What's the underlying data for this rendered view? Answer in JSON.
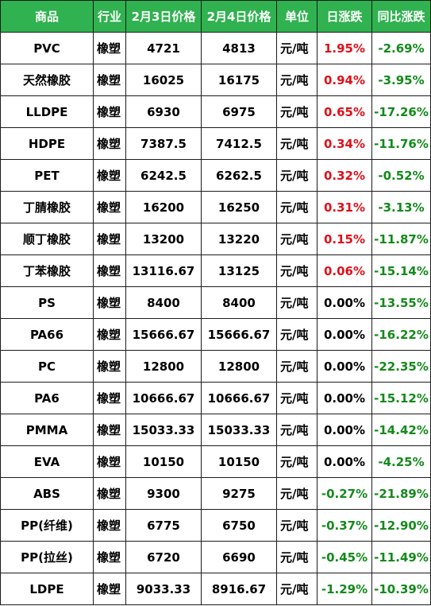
{
  "colors": {
    "header_bg": "#2fb24f",
    "header_text": "#ffffff",
    "rise": "#e0101a",
    "fall": "#138a1b",
    "flat": "#000000"
  },
  "headers": [
    "商品",
    "行业",
    "2月3日价格",
    "2月4日价格",
    "单位",
    "日涨跌",
    "同比涨跌"
  ],
  "rows": [
    {
      "name": "PVC",
      "industry": "橡塑",
      "price_feb3": "4721",
      "price_feb4": "4813",
      "unit": "元/吨",
      "daily_change": "1.95%",
      "daily_trend": "up",
      "yoy_change": "-2.69%"
    },
    {
      "name": "天然橡胶",
      "industry": "橡塑",
      "price_feb3": "16025",
      "price_feb4": "16175",
      "unit": "元/吨",
      "daily_change": "0.94%",
      "daily_trend": "up",
      "yoy_change": "-3.95%"
    },
    {
      "name": "LLDPE",
      "industry": "橡塑",
      "price_feb3": "6930",
      "price_feb4": "6975",
      "unit": "元/吨",
      "daily_change": "0.65%",
      "daily_trend": "up",
      "yoy_change": "-17.26%"
    },
    {
      "name": "HDPE",
      "industry": "橡塑",
      "price_feb3": "7387.5",
      "price_feb4": "7412.5",
      "unit": "元/吨",
      "daily_change": "0.34%",
      "daily_trend": "up",
      "yoy_change": "-11.76%"
    },
    {
      "name": "PET",
      "industry": "橡塑",
      "price_feb3": "6242.5",
      "price_feb4": "6262.5",
      "unit": "元/吨",
      "daily_change": "0.32%",
      "daily_trend": "up",
      "yoy_change": "-0.52%"
    },
    {
      "name": "丁腈橡胶",
      "industry": "橡塑",
      "price_feb3": "16200",
      "price_feb4": "16250",
      "unit": "元/吨",
      "daily_change": "0.31%",
      "daily_trend": "up",
      "yoy_change": "-3.13%"
    },
    {
      "name": "顺丁橡胶",
      "industry": "橡塑",
      "price_feb3": "13200",
      "price_feb4": "13220",
      "unit": "元/吨",
      "daily_change": "0.15%",
      "daily_trend": "up",
      "yoy_change": "-11.87%"
    },
    {
      "name": "丁苯橡胶",
      "industry": "橡塑",
      "price_feb3": "13116.67",
      "price_feb4": "13125",
      "unit": "元/吨",
      "daily_change": "0.06%",
      "daily_trend": "up",
      "yoy_change": "-15.14%"
    },
    {
      "name": "PS",
      "industry": "橡塑",
      "price_feb3": "8400",
      "price_feb4": "8400",
      "unit": "元/吨",
      "daily_change": "0.00%",
      "daily_trend": "flat",
      "yoy_change": "-13.55%"
    },
    {
      "name": "PA66",
      "industry": "橡塑",
      "price_feb3": "15666.67",
      "price_feb4": "15666.67",
      "unit": "元/吨",
      "daily_change": "0.00%",
      "daily_trend": "flat",
      "yoy_change": "-16.22%"
    },
    {
      "name": "PC",
      "industry": "橡塑",
      "price_feb3": "12800",
      "price_feb4": "12800",
      "unit": "元/吨",
      "daily_change": "0.00%",
      "daily_trend": "flat",
      "yoy_change": "-22.35%"
    },
    {
      "name": "PA6",
      "industry": "橡塑",
      "price_feb3": "10666.67",
      "price_feb4": "10666.67",
      "unit": "元/吨",
      "daily_change": "0.00%",
      "daily_trend": "flat",
      "yoy_change": "-15.12%"
    },
    {
      "name": "PMMA",
      "industry": "橡塑",
      "price_feb3": "15033.33",
      "price_feb4": "15033.33",
      "unit": "元/吨",
      "daily_change": "0.00%",
      "daily_trend": "flat",
      "yoy_change": "-14.42%"
    },
    {
      "name": "EVA",
      "industry": "橡塑",
      "price_feb3": "10150",
      "price_feb4": "10150",
      "unit": "元/吨",
      "daily_change": "0.00%",
      "daily_trend": "flat",
      "yoy_change": "-4.25%"
    },
    {
      "name": "ABS",
      "industry": "橡塑",
      "price_feb3": "9300",
      "price_feb4": "9275",
      "unit": "元/吨",
      "daily_change": "-0.27%",
      "daily_trend": "down",
      "yoy_change": "-21.89%"
    },
    {
      "name": "PP(纤维)",
      "industry": "橡塑",
      "price_feb3": "6775",
      "price_feb4": "6750",
      "unit": "元/吨",
      "daily_change": "-0.37%",
      "daily_trend": "down",
      "yoy_change": "-12.90%"
    },
    {
      "name": "PP(拉丝)",
      "industry": "橡塑",
      "price_feb3": "6720",
      "price_feb4": "6690",
      "unit": "元/吨",
      "daily_change": "-0.45%",
      "daily_trend": "down",
      "yoy_change": "-11.49%"
    },
    {
      "name": "LDPE",
      "industry": "橡塑",
      "price_feb3": "9033.33",
      "price_feb4": "8916.67",
      "unit": "元/吨",
      "daily_change": "-1.29%",
      "daily_trend": "down",
      "yoy_change": "-10.39%"
    }
  ]
}
